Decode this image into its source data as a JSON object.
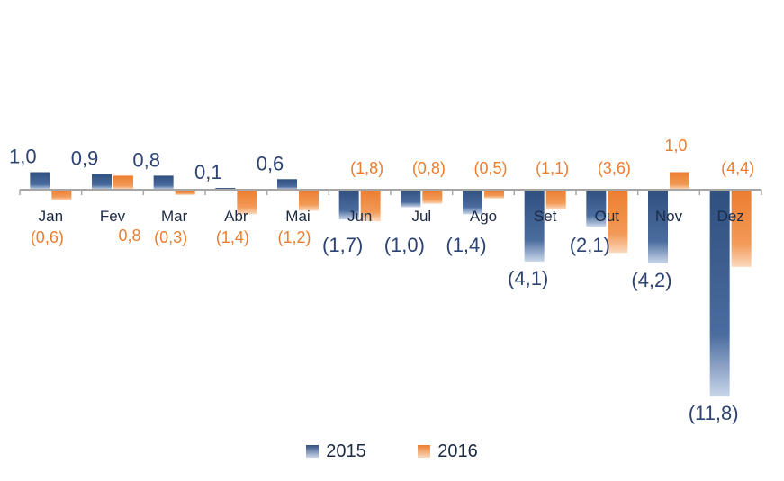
{
  "chart_data": {
    "type": "bar",
    "categories": [
      "Jan",
      "Fev",
      "Mar",
      "Abr",
      "Mai",
      "Jun",
      "Jul",
      "Ago",
      "Set",
      "Out",
      "Nov",
      "Dez"
    ],
    "series": [
      {
        "name": "2015",
        "color": "#3a5a8c",
        "values": [
          1.0,
          0.9,
          0.8,
          0.1,
          0.6,
          -1.7,
          -1.0,
          -1.4,
          -4.1,
          -2.1,
          -4.2,
          -11.8
        ],
        "labels": [
          "1,0",
          "0,9",
          "0,8",
          "0,1",
          "0,6",
          "(1,7)",
          "(1,0)",
          "(1,4)",
          "(4,1)",
          "(2,1)",
          "(4,2)",
          "(11,8)"
        ]
      },
      {
        "name": "2016",
        "color": "#ec7d2f",
        "values": [
          -0.6,
          0.8,
          -0.3,
          -1.4,
          -1.2,
          -1.8,
          -0.8,
          -0.5,
          -1.1,
          -3.6,
          1.0,
          -4.4
        ],
        "labels": [
          "(0,6)",
          "0,8",
          "(0,3)",
          "(1,4)",
          "(1,2)",
          "(1,8)",
          "(0,8)",
          "(0,5)",
          "(1,1)",
          "(3,6)",
          "1,0",
          "(4,4)"
        ]
      }
    ],
    "legend_position": "bottom",
    "grid": false
  }
}
